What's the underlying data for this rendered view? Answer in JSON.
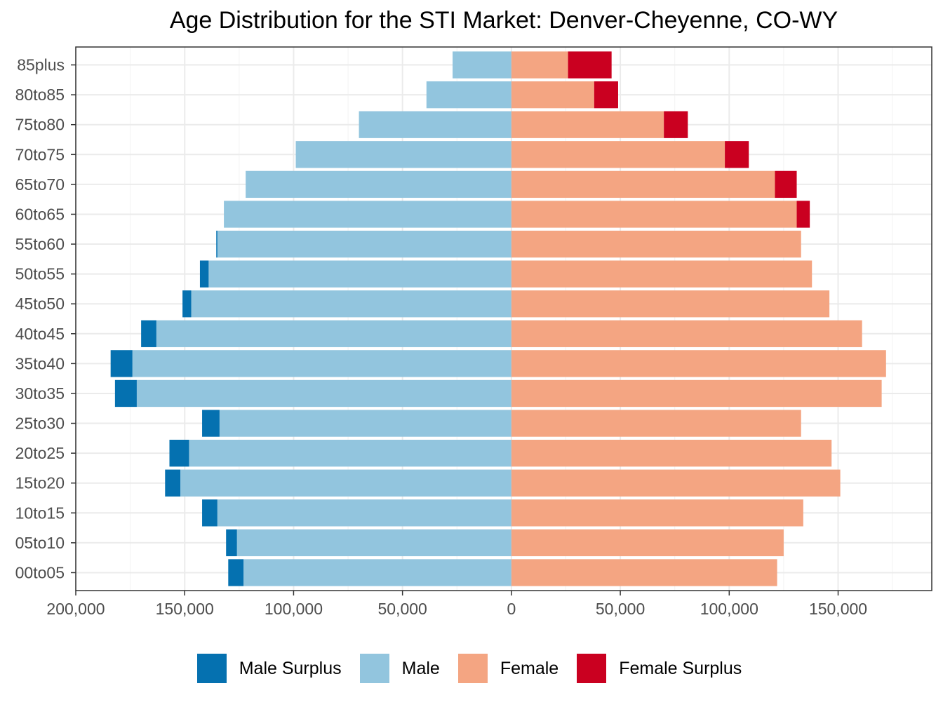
{
  "chart_data": {
    "type": "bar",
    "orientation": "horizontal-diverging",
    "title": "Age Distribution for the STI Market: Denver-Cheyenne, CO-WY",
    "xlabel": "",
    "ylabel": "",
    "categories": [
      "00to05",
      "05to10",
      "10to15",
      "15to20",
      "20to25",
      "25to30",
      "30to35",
      "35to40",
      "40to45",
      "45to50",
      "50to55",
      "55to60",
      "60to65",
      "65to70",
      "70to75",
      "75to80",
      "80to85",
      "85plus"
    ],
    "series": [
      {
        "name": "Male",
        "color": "#92c5de",
        "values": [
          123000,
          126000,
          135000,
          152000,
          148000,
          134000,
          172000,
          174000,
          163000,
          147000,
          139000,
          135000,
          132000,
          122000,
          99000,
          70000,
          39000,
          27000
        ]
      },
      {
        "name": "Male Surplus",
        "color": "#0571b0",
        "values": [
          7000,
          5000,
          7000,
          7000,
          9000,
          8000,
          10000,
          10000,
          7000,
          4000,
          4000,
          500,
          0,
          0,
          0,
          0,
          0,
          0
        ]
      },
      {
        "name": "Female",
        "color": "#f4a582",
        "values": [
          122000,
          125000,
          134000,
          151000,
          147000,
          133000,
          170000,
          172000,
          161000,
          146000,
          138000,
          133000,
          131000,
          121000,
          98000,
          70000,
          38000,
          26000
        ]
      },
      {
        "name": "Female Surplus",
        "color": "#ca0020",
        "values": [
          0,
          0,
          0,
          0,
          0,
          0,
          0,
          0,
          0,
          0,
          0,
          0,
          6000,
          10000,
          11000,
          11000,
          11000,
          20000
        ]
      }
    ],
    "xlim": [
      -200000,
      193000
    ],
    "x_ticks": [
      {
        "value": -200000,
        "label": "200,000"
      },
      {
        "value": -150000,
        "label": "150,000"
      },
      {
        "value": -100000,
        "label": "100,000"
      },
      {
        "value": -50000,
        "label": "50,000"
      },
      {
        "value": 0,
        "label": "0"
      },
      {
        "value": 50000,
        "label": "50,000"
      },
      {
        "value": 100000,
        "label": "100,000"
      },
      {
        "value": 150000,
        "label": "150,000"
      }
    ],
    "grid": true,
    "legend_position": "bottom",
    "legend_order": [
      "Male Surplus",
      "Male",
      "Female",
      "Female Surplus"
    ]
  }
}
